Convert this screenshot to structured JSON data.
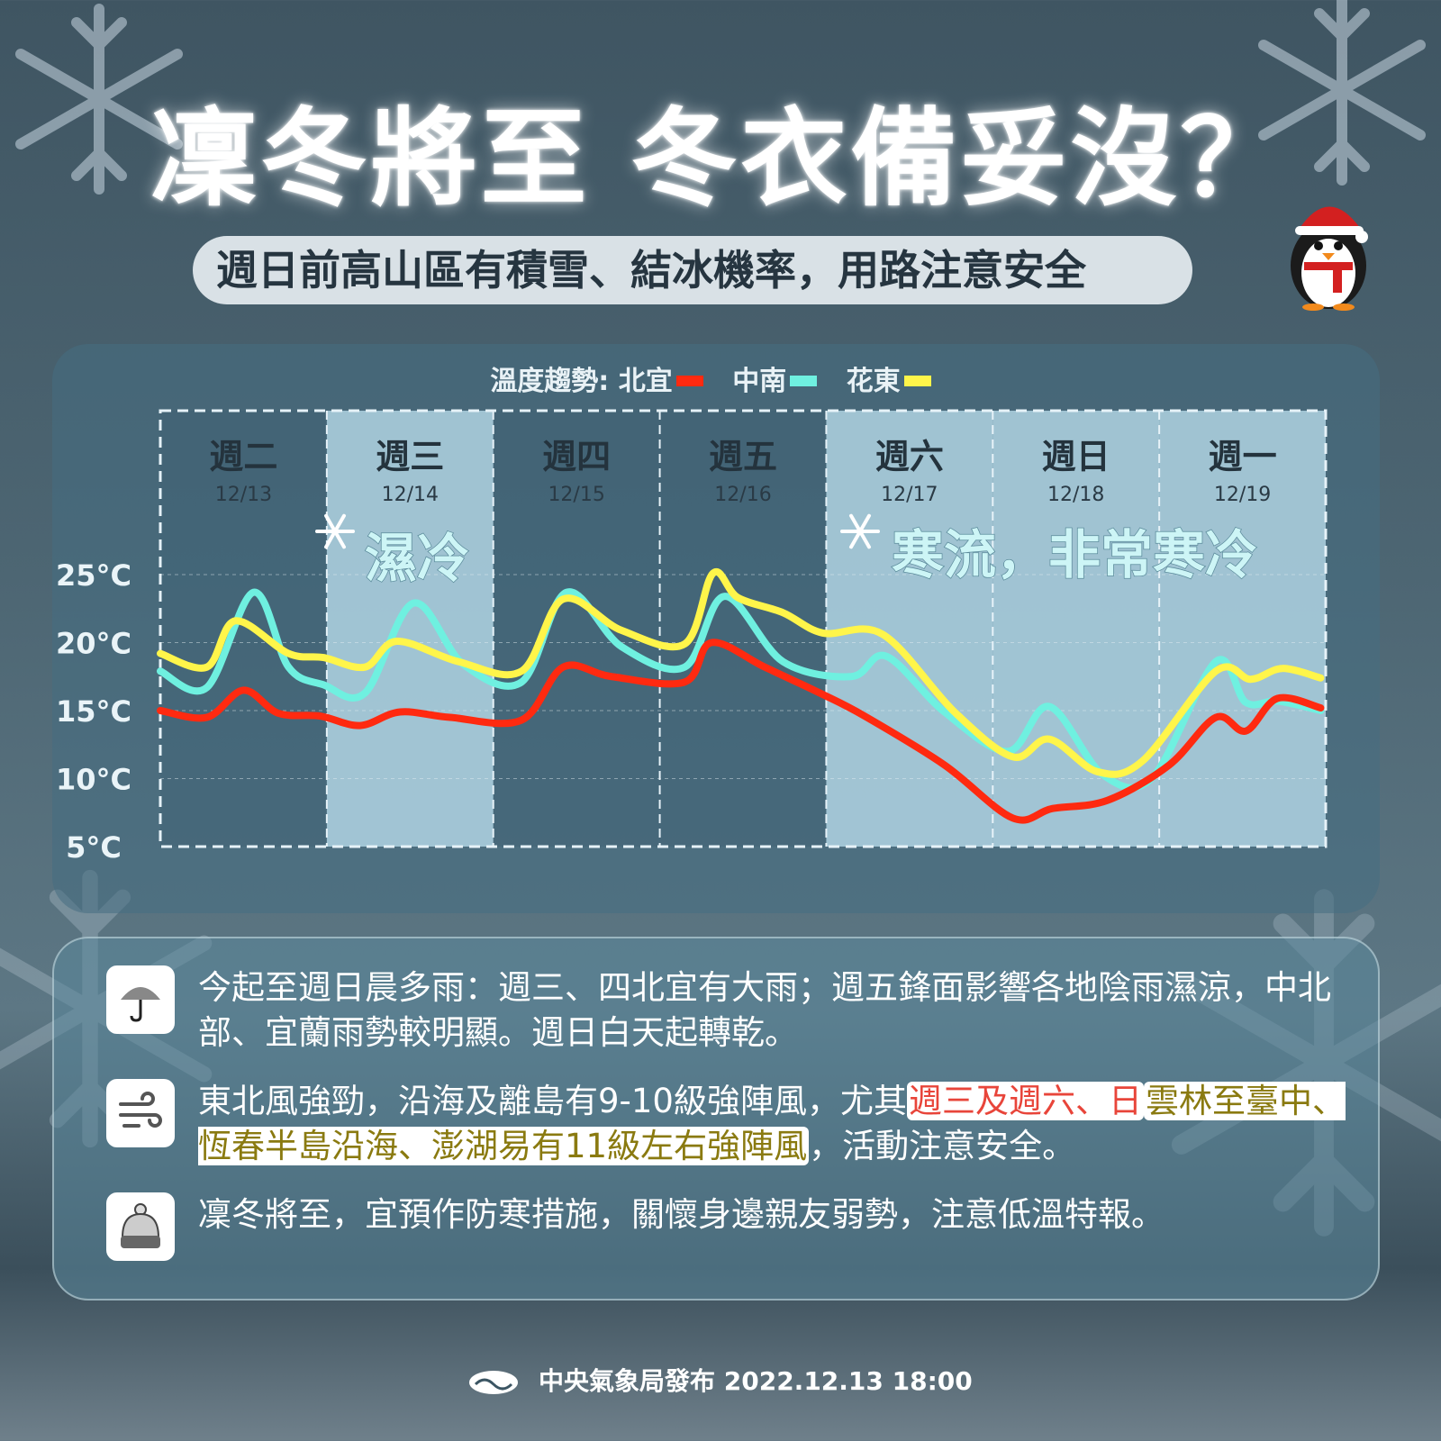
{
  "title": "凜冬將至 冬衣備妥沒？",
  "subtitle": "週日前高山區有積雪、結冰機率，用路注意安全",
  "chart_data": {
    "type": "line",
    "legend_title": "溫度趨勢:",
    "legend_placement": "top-center",
    "ylim": [
      5,
      25
    ],
    "yticks": [
      "25°C",
      "20°C",
      "15°C",
      "10°C",
      "5°C"
    ],
    "ytick_values": [
      25,
      20,
      15,
      10,
      5
    ],
    "xlim": [
      13,
      20
    ],
    "grid": true,
    "days": [
      {
        "weekday": "週二",
        "date": "12/13",
        "shade": "dark"
      },
      {
        "weekday": "週三",
        "date": "12/14",
        "shade": "light"
      },
      {
        "weekday": "週四",
        "date": "12/15",
        "shade": "dark"
      },
      {
        "weekday": "週五",
        "date": "12/16",
        "shade": "dark"
      },
      {
        "weekday": "週六",
        "date": "12/17",
        "shade": "light"
      },
      {
        "weekday": "週日",
        "date": "12/18",
        "shade": "light"
      },
      {
        "weekday": "週一",
        "date": "12/19",
        "shade": "light"
      }
    ],
    "annotations": [
      {
        "text": "濕冷",
        "icon": "snowflake-icon"
      },
      {
        "text": "寒流，非常寒冷",
        "icon": "snowflake-icon"
      }
    ],
    "series": [
      {
        "name": "北宜",
        "color": "#ff2a10",
        "x": [
          13.0,
          13.28,
          13.5,
          13.71,
          13.96,
          14.2,
          14.44,
          14.74,
          15.17,
          15.42,
          15.71,
          16.15,
          16.31,
          16.63,
          16.96,
          17.23,
          17.71,
          18.12,
          18.36,
          18.69,
          19.06,
          19.34,
          19.52,
          19.71,
          19.97
        ],
        "y": [
          15.0,
          14.5,
          16.5,
          14.8,
          14.6,
          13.9,
          14.9,
          14.5,
          14.3,
          18.2,
          17.5,
          17.1,
          20.0,
          18.2,
          16.3,
          14.6,
          11.0,
          7.1,
          7.8,
          8.4,
          11.0,
          14.5,
          13.5,
          15.9,
          15.2
        ]
      },
      {
        "name": "中南",
        "color": "#6ff0e0",
        "x": [
          13.0,
          13.28,
          13.56,
          13.77,
          13.98,
          14.23,
          14.52,
          14.82,
          15.17,
          15.44,
          15.77,
          16.15,
          16.39,
          16.74,
          17.15,
          17.36,
          17.71,
          18.09,
          18.34,
          18.66,
          18.96,
          19.34,
          19.52,
          19.71,
          19.97
        ],
        "y": [
          17.9,
          16.7,
          23.7,
          18.2,
          16.9,
          16.3,
          22.9,
          18.4,
          17.1,
          23.7,
          19.7,
          18.2,
          23.4,
          18.6,
          17.5,
          19.0,
          14.9,
          12.0,
          15.3,
          10.3,
          10.1,
          18.6,
          15.6,
          15.7,
          15.0
        ]
      },
      {
        "name": "花東",
        "color": "#fff54a",
        "x": [
          13.0,
          13.28,
          13.45,
          13.77,
          13.98,
          14.23,
          14.42,
          14.79,
          15.17,
          15.42,
          15.77,
          16.15,
          16.32,
          16.47,
          16.74,
          16.98,
          17.34,
          17.77,
          18.12,
          18.34,
          18.63,
          18.9,
          19.34,
          19.55,
          19.74,
          19.97
        ],
        "y": [
          19.2,
          18.2,
          21.6,
          19.2,
          18.9,
          18.2,
          20.1,
          18.6,
          17.9,
          23.2,
          20.9,
          19.9,
          25.1,
          23.3,
          22.2,
          20.7,
          20.6,
          14.9,
          11.6,
          12.9,
          10.5,
          11.3,
          17.9,
          17.3,
          18.1,
          17.4
        ]
      }
    ]
  },
  "info": [
    {
      "icon": "umbrella-icon",
      "parts": [
        {
          "text": "今起至週日晨多雨：週三、四北宜有大雨；週五鋒面影響各地陰雨濕涼，中北部、宜蘭雨勢較明顯。週日白天起轉乾。"
        }
      ]
    },
    {
      "icon": "wind-icon",
      "parts": [
        {
          "text": "東北風強勁，沿海及離島有9-10級強陣風，尤其"
        },
        {
          "text": "週三及週六、日",
          "style": "red"
        },
        {
          "text": "雲林至臺中、恆春半島沿海、澎湖易有11級左右強陣風",
          "style": "olive"
        },
        {
          "text": "，活動注意安全。"
        }
      ]
    },
    {
      "icon": "beanie-icon",
      "parts": [
        {
          "text": "凜冬將至，宜預作防寒措施，關懷身邊親友弱勢，注意低溫特報。"
        }
      ]
    }
  ],
  "footer": {
    "publisher": "中央氣象局發布",
    "datetime": "2022.12.13 18:00"
  }
}
